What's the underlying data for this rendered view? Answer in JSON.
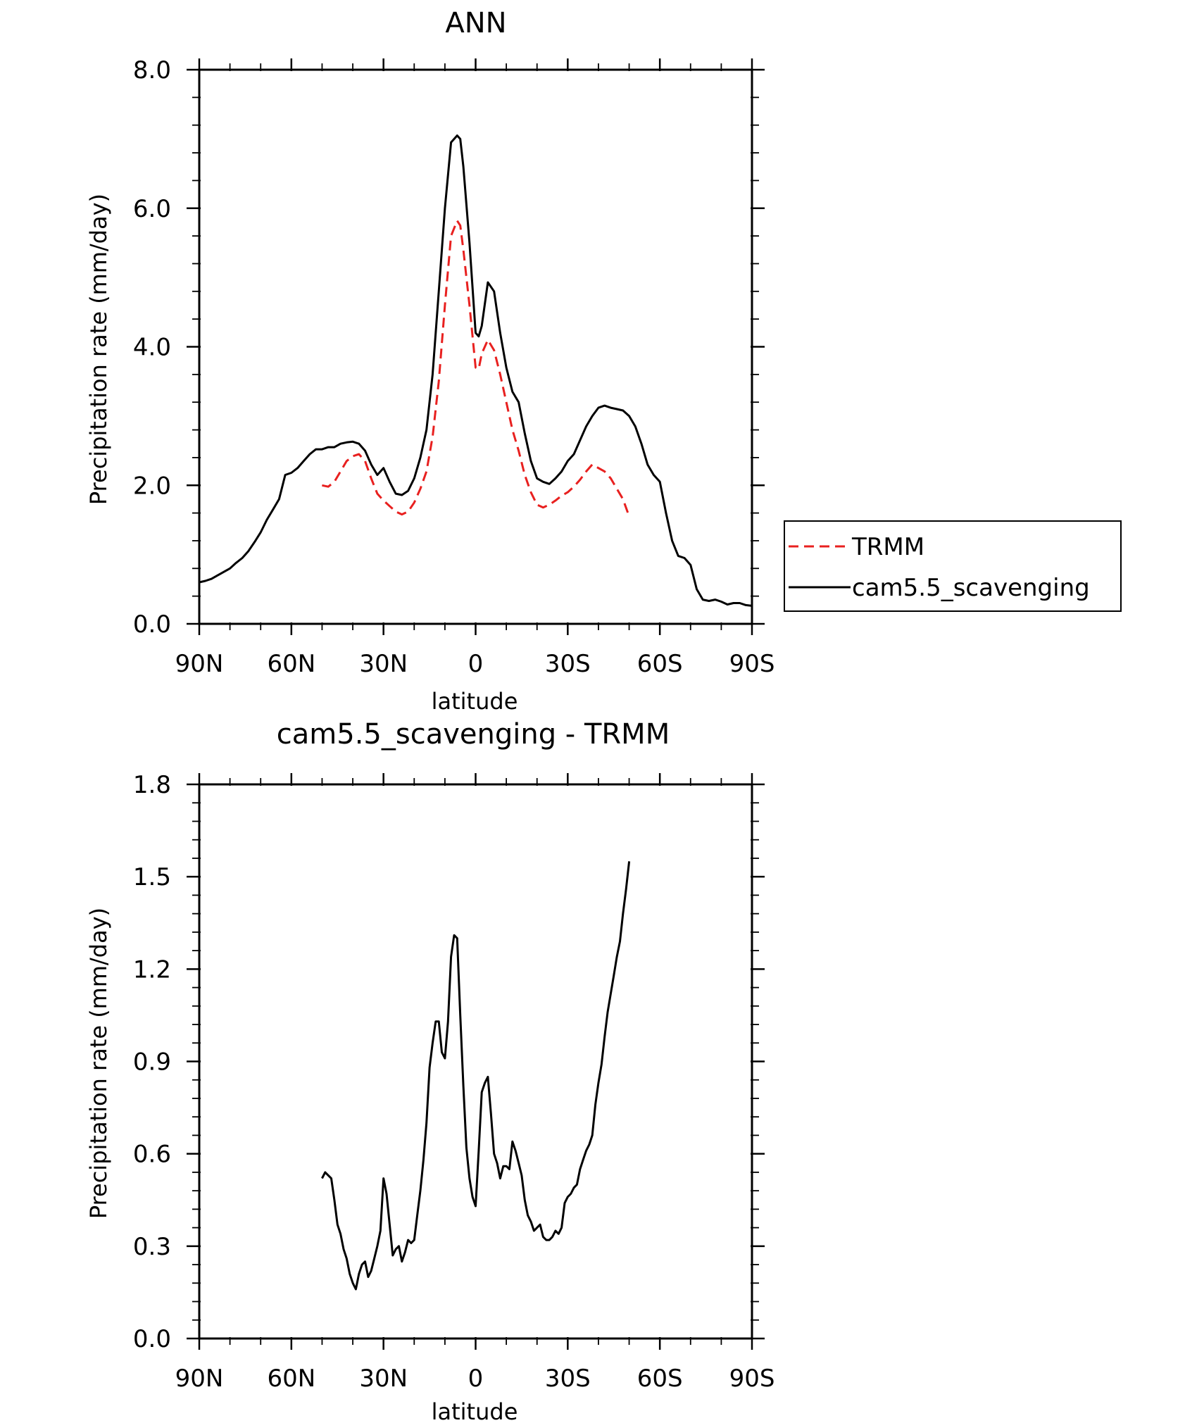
{
  "chart_data": [
    {
      "type": "line",
      "title": "ANN",
      "xlabel": "latitude",
      "ylabel": "Precipitation rate (mm/day)",
      "xlim": [
        -90,
        90
      ],
      "ylim": [
        0,
        8
      ],
      "xticks": [
        -90,
        -60,
        -30,
        0,
        30,
        60,
        90
      ],
      "xtick_labels": [
        "90N",
        "60N",
        "30N",
        "0",
        "30S",
        "60S",
        "90S"
      ],
      "yticks": [
        0,
        2,
        4,
        6,
        8
      ],
      "ytick_labels": [
        "0.0",
        "2.0",
        "4.0",
        "6.0",
        "8.0"
      ],
      "legend_position": "right",
      "series": [
        {
          "name": "TRMM",
          "color": "#e8201f",
          "style": "dashed",
          "x": [
            -50,
            -48,
            -46,
            -44,
            -42,
            -40,
            -38,
            -36,
            -34,
            -32,
            -30,
            -28,
            -26,
            -24,
            -22,
            -20,
            -18,
            -16,
            -14,
            -12,
            -10,
            -8,
            -6,
            -5,
            -4,
            -2,
            0,
            1,
            2,
            4,
            6,
            8,
            10,
            12,
            14,
            16,
            18,
            20,
            22,
            24,
            26,
            28,
            30,
            32,
            34,
            36,
            38,
            40,
            42,
            44,
            46,
            48,
            50
          ],
          "y": [
            2.0,
            1.98,
            2.05,
            2.2,
            2.35,
            2.42,
            2.45,
            2.35,
            2.1,
            1.88,
            1.78,
            1.7,
            1.62,
            1.58,
            1.62,
            1.75,
            1.95,
            2.2,
            2.7,
            3.5,
            4.6,
            5.6,
            5.82,
            5.75,
            5.4,
            4.6,
            3.7,
            3.68,
            3.9,
            4.1,
            3.95,
            3.6,
            3.2,
            2.8,
            2.5,
            2.15,
            1.9,
            1.72,
            1.68,
            1.72,
            1.78,
            1.85,
            1.9,
            1.98,
            2.08,
            2.2,
            2.3,
            2.25,
            2.2,
            2.1,
            1.95,
            1.8,
            1.55
          ]
        },
        {
          "name": "cam5.5_scavenging",
          "color": "#000000",
          "style": "solid",
          "x": [
            -90,
            -88,
            -86,
            -84,
            -82,
            -80,
            -78,
            -76,
            -74,
            -72,
            -70,
            -68,
            -66,
            -64,
            -62,
            -60,
            -58,
            -56,
            -54,
            -52,
            -50,
            -48,
            -46,
            -44,
            -42,
            -40,
            -38,
            -36,
            -34,
            -32,
            -30,
            -28,
            -26,
            -24,
            -22,
            -20,
            -18,
            -16,
            -14,
            -12,
            -10,
            -8,
            -6,
            -5,
            -4,
            -2,
            0,
            1,
            2,
            4,
            6,
            8,
            10,
            12,
            14,
            16,
            18,
            20,
            22,
            24,
            26,
            28,
            30,
            32,
            34,
            36,
            38,
            40,
            42,
            44,
            46,
            48,
            50,
            52,
            54,
            56,
            58,
            60,
            62,
            64,
            66,
            68,
            70,
            72,
            74,
            76,
            78,
            80,
            82,
            84,
            86,
            88,
            90
          ],
          "y": [
            0.6,
            0.62,
            0.65,
            0.7,
            0.75,
            0.8,
            0.88,
            0.95,
            1.05,
            1.18,
            1.32,
            1.5,
            1.65,
            1.8,
            2.15,
            2.18,
            2.25,
            2.35,
            2.45,
            2.52,
            2.52,
            2.55,
            2.55,
            2.6,
            2.62,
            2.63,
            2.6,
            2.5,
            2.3,
            2.15,
            2.25,
            2.05,
            1.88,
            1.86,
            1.92,
            2.1,
            2.4,
            2.8,
            3.6,
            4.8,
            6.0,
            6.95,
            7.05,
            7.0,
            6.6,
            5.5,
            4.2,
            4.15,
            4.3,
            4.93,
            4.8,
            4.2,
            3.7,
            3.35,
            3.2,
            2.75,
            2.35,
            2.1,
            2.05,
            2.02,
            2.1,
            2.2,
            2.35,
            2.45,
            2.65,
            2.85,
            3.0,
            3.12,
            3.15,
            3.12,
            3.1,
            3.08,
            3.0,
            2.85,
            2.6,
            2.3,
            2.15,
            2.05,
            1.6,
            1.2,
            0.98,
            0.95,
            0.85,
            0.5,
            0.35,
            0.33,
            0.35,
            0.32,
            0.28,
            0.3,
            0.3,
            0.27,
            0.26
          ]
        }
      ]
    },
    {
      "type": "line",
      "title": "cam5.5_scavenging - TRMM",
      "xlabel": "latitude",
      "ylabel": "Precipitation rate (mm/day)",
      "xlim": [
        -90,
        90
      ],
      "ylim": [
        0,
        1.8
      ],
      "xticks": [
        -90,
        -60,
        -30,
        0,
        30,
        60,
        90
      ],
      "xtick_labels": [
        "90N",
        "60N",
        "30N",
        "0",
        "30S",
        "60S",
        "90S"
      ],
      "yticks": [
        0,
        0.3,
        0.6,
        0.9,
        1.2,
        1.5,
        1.8
      ],
      "ytick_labels": [
        "0.0",
        "0.3",
        "0.6",
        "0.9",
        "1.2",
        "1.5",
        "1.8"
      ],
      "series": [
        {
          "name": "cam5.5_scavenging - TRMM",
          "color": "#000000",
          "style": "solid",
          "x": [
            -50,
            -49,
            -48,
            -47,
            -46,
            -45,
            -44,
            -43,
            -42,
            -41,
            -40,
            -39,
            -38,
            -37,
            -36,
            -35,
            -34,
            -33,
            -32,
            -31,
            -30,
            -29,
            -28,
            -27,
            -26,
            -25,
            -24,
            -23,
            -22,
            -21,
            -20,
            -19,
            -18,
            -17,
            -16,
            -15,
            -14,
            -13,
            -12,
            -11,
            -10,
            -9,
            -8,
            -7,
            -6,
            -5,
            -4,
            -3,
            -2,
            -1,
            0,
            1,
            2,
            3,
            4,
            5,
            6,
            7,
            8,
            9,
            10,
            11,
            12,
            13,
            14,
            15,
            16,
            17,
            18,
            19,
            20,
            21,
            22,
            23,
            24,
            25,
            26,
            27,
            28,
            29,
            30,
            31,
            32,
            33,
            34,
            35,
            36,
            37,
            38,
            39,
            40,
            41,
            42,
            43,
            44,
            45,
            46,
            47,
            48,
            49,
            50
          ],
          "y": [
            0.52,
            0.54,
            0.53,
            0.52,
            0.45,
            0.37,
            0.34,
            0.29,
            0.26,
            0.21,
            0.18,
            0.16,
            0.21,
            0.24,
            0.25,
            0.2,
            0.22,
            0.26,
            0.3,
            0.35,
            0.52,
            0.47,
            0.37,
            0.27,
            0.29,
            0.3,
            0.25,
            0.28,
            0.32,
            0.31,
            0.32,
            0.4,
            0.48,
            0.58,
            0.7,
            0.88,
            0.96,
            1.03,
            1.03,
            0.93,
            0.91,
            1.03,
            1.24,
            1.31,
            1.3,
            1.05,
            0.82,
            0.62,
            0.52,
            0.46,
            0.43,
            0.61,
            0.8,
            0.83,
            0.85,
            0.73,
            0.6,
            0.57,
            0.52,
            0.56,
            0.56,
            0.55,
            0.64,
            0.61,
            0.57,
            0.53,
            0.45,
            0.4,
            0.38,
            0.35,
            0.36,
            0.37,
            0.33,
            0.32,
            0.32,
            0.33,
            0.35,
            0.34,
            0.36,
            0.44,
            0.46,
            0.47,
            0.49,
            0.5,
            0.55,
            0.58,
            0.61,
            0.63,
            0.66,
            0.76,
            0.83,
            0.89,
            0.98,
            1.06,
            1.12,
            1.18,
            1.24,
            1.29,
            1.38,
            1.46,
            1.55
          ]
        }
      ]
    }
  ]
}
